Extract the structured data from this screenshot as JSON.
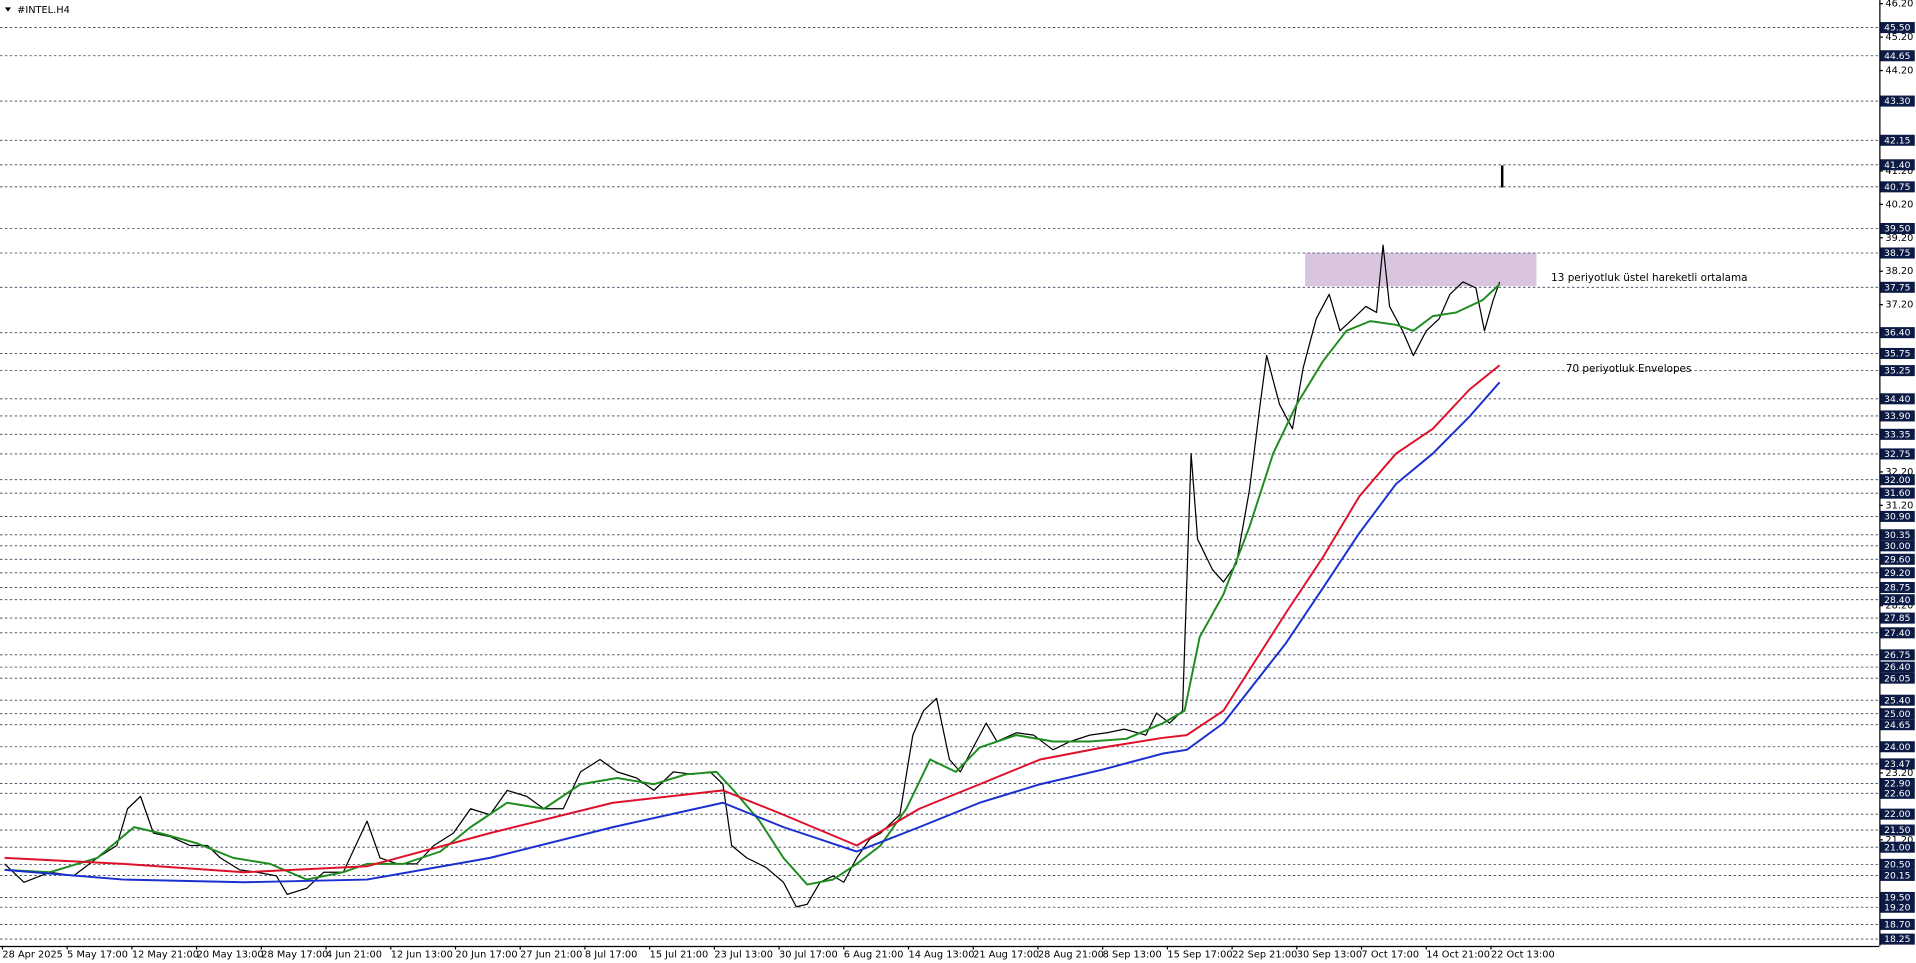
{
  "chart_data": {
    "type": "line",
    "title": "#INTEL.H4",
    "xlim": [
      0,
      870
    ],
    "ylim": [
      18.03,
      46.31
    ],
    "xticks": [
      {
        "value": 0,
        "label": "28 Apr 2025"
      },
      {
        "value": 30,
        "label": "5 May 17:00"
      },
      {
        "value": 60,
        "label": "12 May 21:00"
      },
      {
        "value": 90,
        "label": "20 May 13:00"
      },
      {
        "value": 120,
        "label": "28 May 17:00"
      },
      {
        "value": 150,
        "label": "4 Jun 21:00"
      },
      {
        "value": 180,
        "label": "12 Jun 13:00"
      },
      {
        "value": 210,
        "label": "20 Jun 17:00"
      },
      {
        "value": 240,
        "label": "27 Jun 21:00"
      },
      {
        "value": 270,
        "label": "8 Jul 17:00"
      },
      {
        "value": 300,
        "label": "15 Jul 21:00"
      },
      {
        "value": 330,
        "label": "23 Jul 13:00"
      },
      {
        "value": 360,
        "label": "30 Jul 17:00"
      },
      {
        "value": 390,
        "label": "6 Aug 21:00"
      },
      {
        "value": 420,
        "label": "14 Aug 13:00"
      },
      {
        "value": 450,
        "label": "21 Aug 17:00"
      },
      {
        "value": 480,
        "label": "28 Aug 21:00"
      },
      {
        "value": 510,
        "label": "8 Sep 13:00"
      },
      {
        "value": 540,
        "label": "15 Sep 17:00"
      },
      {
        "value": 570,
        "label": "22 Sep 21:00"
      },
      {
        "value": 600,
        "label": "30 Sep 13:00"
      },
      {
        "value": 630,
        "label": "7 Oct 17:00"
      },
      {
        "value": 660,
        "label": "14 Oct 21:00"
      },
      {
        "value": 690,
        "label": "22 Oct 13:00"
      }
    ],
    "yticks": [
      {
        "value": 46.2,
        "label": "46.20"
      },
      {
        "value": 45.2,
        "label": "45.20"
      },
      {
        "value": 44.2,
        "label": "44.20"
      },
      {
        "value": 41.2,
        "label": "41.20"
      },
      {
        "value": 40.2,
        "label": "40.20"
      },
      {
        "value": 39.2,
        "label": "39.20"
      },
      {
        "value": 38.2,
        "label": "38.20"
      },
      {
        "value": 37.2,
        "label": "37.20"
      },
      {
        "value": 32.2,
        "label": "32.20"
      },
      {
        "value": 31.2,
        "label": "31.20"
      },
      {
        "value": 28.2,
        "label": "28.20"
      },
      {
        "value": 23.2,
        "label": "23.20"
      },
      {
        "value": 21.2,
        "label": "21.20"
      }
    ],
    "levels": [
      {
        "value": 45.5,
        "label": "45.50"
      },
      44.65,
      {
        "value": 43.3,
        "label": "43.30"
      },
      42.15,
      {
        "value": 41.4,
        "label": "41.40"
      },
      40.75,
      {
        "value": 39.5,
        "label": "39.50"
      },
      38.75,
      37.75,
      {
        "value": 36.4,
        "label": "36.40"
      },
      35.75,
      35.25,
      {
        "value": 34.4,
        "label": "34.40"
      },
      {
        "value": 33.9,
        "label": "33.90"
      },
      33.35,
      32.75,
      {
        "value": 32,
        "label": "32.00"
      },
      {
        "value": 31.6,
        "label": "31.60"
      },
      {
        "value": 30.9,
        "label": "30.90"
      },
      30.35,
      {
        "value": 30,
        "label": "30.00"
      },
      {
        "value": 29.6,
        "label": "29.60"
      },
      {
        "value": 29.2,
        "label": "29.20"
      },
      28.75,
      {
        "value": 28.4,
        "label": "28.40"
      },
      27.85,
      {
        "value": 27.4,
        "label": "27.40"
      },
      26.75,
      {
        "value": 26.4,
        "label": "26.40"
      },
      26.05,
      {
        "value": 25.4,
        "label": "25.40"
      },
      {
        "value": 25,
        "label": "25.00"
      },
      24.65,
      {
        "value": 24,
        "label": "24.00"
      },
      23.47,
      {
        "value": 22.9,
        "label": "22.90"
      },
      {
        "value": 22.6,
        "label": "22.60"
      },
      {
        "value": 22,
        "label": "22.00"
      },
      {
        "value": 21.5,
        "label": "21.50"
      },
      {
        "value": 21,
        "label": "21.00"
      },
      {
        "value": 20.5,
        "label": "20.50"
      },
      20.15,
      {
        "value": 19.5,
        "label": "19.50"
      },
      {
        "value": 19.2,
        "label": "19.20"
      },
      {
        "value": 18.7,
        "label": "18.70"
      },
      18.25
    ],
    "zone": [
      37.75,
      38.75
    ],
    "annotations": [
      {
        "text": "13 periyotluk üstel hareketli ortalama",
        "color": "#1e8c1e"
      },
      {
        "text": "70 periyotluk Envelopes",
        "color": "#2b2bd0"
      }
    ],
    "series": [
      {
        "color": "#000000",
        "x": [
          1,
          10,
          22,
          33,
          44,
          53,
          58,
          64,
          70,
          78,
          87,
          95,
          101,
          110,
          118,
          127,
          132,
          141,
          149,
          158,
          169,
          175,
          183,
          192,
          200,
          209,
          217,
          226,
          234,
          243,
          251,
          260,
          268,
          277,
          285,
          294,
          302,
          311,
          320,
          328,
          334,
          338,
          345,
          354,
          362,
          368,
          373,
          379,
          385,
          390,
          396,
          402,
          407,
          416,
          422,
          427,
          433,
          439,
          444,
          450,
          456,
          461,
          470,
          478,
          487,
          495,
          504,
          512,
          520,
          530,
          535,
          541,
          547,
          551,
          554,
          561,
          566,
          572,
          578,
          583,
          586,
          592,
          598,
          603,
          609,
          615,
          620,
          626,
          632,
          637,
          640,
          643,
          649,
          654,
          660,
          666,
          671,
          677,
          683,
          687,
          691,
          694
        ],
        "values": [
          20.48,
          19.93,
          20.23,
          20.12,
          20.66,
          21.03,
          22.13,
          22.5,
          21.4,
          21.29,
          21.03,
          21.03,
          20.66,
          20.3,
          20.23,
          20.12,
          19.57,
          19.75,
          20.23,
          20.23,
          21.76,
          20.66,
          20.48,
          20.48,
          21.03,
          21.4,
          22.13,
          21.95,
          22.68,
          22.5,
          22.13,
          22.13,
          23.23,
          23.6,
          23.23,
          23.05,
          22.68,
          23.23,
          23.16,
          23.23,
          22.86,
          21.03,
          20.66,
          20.37,
          19.93,
          19.2,
          19.27,
          19.93,
          20.12,
          19.93,
          20.66,
          21.22,
          21.4,
          21.95,
          24.33,
          25.06,
          25.43,
          23.6,
          23.23,
          23.96,
          24.69,
          24.14,
          24.4,
          24.33,
          23.89,
          24.14,
          24.33,
          24.4,
          24.51,
          24.33,
          24.99,
          24.69,
          25.06,
          32.75,
          30.19,
          29.27,
          28.91,
          29.46,
          31.65,
          34.22,
          35.68,
          34.22,
          33.49,
          35.32,
          36.78,
          37.51,
          36.42,
          36.78,
          37.15,
          36.97,
          38.98,
          37.15,
          36.42,
          35.68,
          36.42,
          36.78,
          37.51,
          37.88,
          37.7,
          36.42,
          37.33,
          37.88
        ]
      },
      {
        "color": "#1e8c1e",
        "x": [
          1,
          22,
          44,
          61,
          73,
          90,
          107,
          124,
          141,
          158,
          169,
          186,
          203,
          217,
          234,
          251,
          268,
          285,
          302,
          317,
          331,
          339,
          351,
          362,
          373,
          385,
          396,
          407,
          419,
          430,
          442,
          453,
          470,
          487,
          504,
          521,
          538,
          548,
          555,
          566,
          578,
          589,
          600,
          612,
          623,
          634,
          646,
          654,
          663,
          674,
          686,
          694
        ],
        "values": [
          20.3,
          20.23,
          20.66,
          21.58,
          21.4,
          21.1,
          20.66,
          20.48,
          20.01,
          20.23,
          20.48,
          20.48,
          20.85,
          21.58,
          22.31,
          22.13,
          22.86,
          23.05,
          22.86,
          23.16,
          23.23,
          22.68,
          21.76,
          20.66,
          19.86,
          20.01,
          20.48,
          21.03,
          22.13,
          23.6,
          23.23,
          23.96,
          24.33,
          24.14,
          24.14,
          24.22,
          24.69,
          25.06,
          27.26,
          28.54,
          30.55,
          32.75,
          34.22,
          35.5,
          36.42,
          36.71,
          36.6,
          36.42,
          36.86,
          36.97,
          37.33,
          37.81
        ]
      },
      {
        "color": "#e0102a",
        "x": [
          1,
          56,
          112,
          169,
          226,
          283,
          334,
          362,
          396,
          425,
          453,
          481,
          510,
          538,
          549,
          566,
          595,
          612,
          629,
          646,
          663,
          680,
          694
        ],
        "values": [
          20.66,
          20.48,
          20.23,
          20.41,
          21.4,
          22.31,
          22.68,
          21.95,
          21.03,
          22.13,
          22.86,
          23.6,
          23.96,
          24.25,
          24.33,
          25.06,
          27.99,
          29.64,
          31.47,
          32.75,
          33.49,
          34.66,
          35.39
        ]
      },
      {
        "color": "#1a2fd0",
        "x": [
          1,
          56,
          112,
          169,
          226,
          283,
          334,
          362,
          396,
          425,
          453,
          481,
          510,
          538,
          549,
          566,
          595,
          612,
          629,
          646,
          663,
          680,
          694
        ],
        "values": [
          20.3,
          20.01,
          19.93,
          20.01,
          20.66,
          21.58,
          22.31,
          21.58,
          20.85,
          21.58,
          22.31,
          22.86,
          23.3,
          23.78,
          23.89,
          24.69,
          27.08,
          28.72,
          30.37,
          31.84,
          32.75,
          33.85,
          34.88
        ]
      }
    ]
  }
}
